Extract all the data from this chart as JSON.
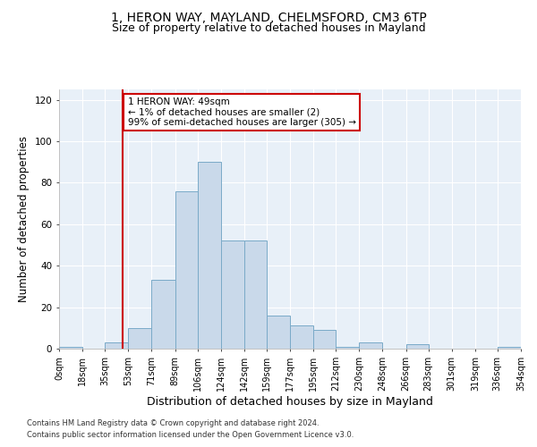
{
  "title1": "1, HERON WAY, MAYLAND, CHELMSFORD, CM3 6TP",
  "title2": "Size of property relative to detached houses in Mayland",
  "xlabel": "Distribution of detached houses by size in Mayland",
  "ylabel": "Number of detached properties",
  "bar_vals": [
    1,
    0,
    3,
    10,
    33,
    76,
    90,
    52,
    52,
    16,
    11,
    9,
    1,
    3,
    0,
    2,
    0,
    0,
    0,
    1
  ],
  "bin_edges": [
    0,
    18,
    35,
    53,
    71,
    89,
    106,
    124,
    142,
    159,
    177,
    195,
    212,
    230,
    248,
    266,
    283,
    301,
    319,
    336,
    354
  ],
  "bin_labels": [
    "0sqm",
    "18sqm",
    "35sqm",
    "53sqm",
    "71sqm",
    "89sqm",
    "106sqm",
    "124sqm",
    "142sqm",
    "159sqm",
    "177sqm",
    "195sqm",
    "212sqm",
    "230sqm",
    "248sqm",
    "266sqm",
    "283sqm",
    "301sqm",
    "319sqm",
    "336sqm",
    "354sqm"
  ],
  "bar_color": "#c9d9ea",
  "bar_edge_color": "#7aaac8",
  "vline_x": 49,
  "vline_color": "#cc0000",
  "ylim": [
    0,
    125
  ],
  "yticks": [
    0,
    20,
    40,
    60,
    80,
    100,
    120
  ],
  "annotation_text": "1 HERON WAY: 49sqm\n← 1% of detached houses are smaller (2)\n99% of semi-detached houses are larger (305) →",
  "annotation_box_color": "#ffffff",
  "annotation_box_edge": "#cc0000",
  "footer1": "Contains HM Land Registry data © Crown copyright and database right 2024.",
  "footer2": "Contains public sector information licensed under the Open Government Licence v3.0.",
  "background_color": "#e8f0f8",
  "title1_fontsize": 10,
  "title2_fontsize": 9,
  "ylabel_fontsize": 8.5,
  "xlabel_fontsize": 9,
  "tick_fontsize": 7,
  "footer_fontsize": 6,
  "annotation_fontsize": 7.5
}
